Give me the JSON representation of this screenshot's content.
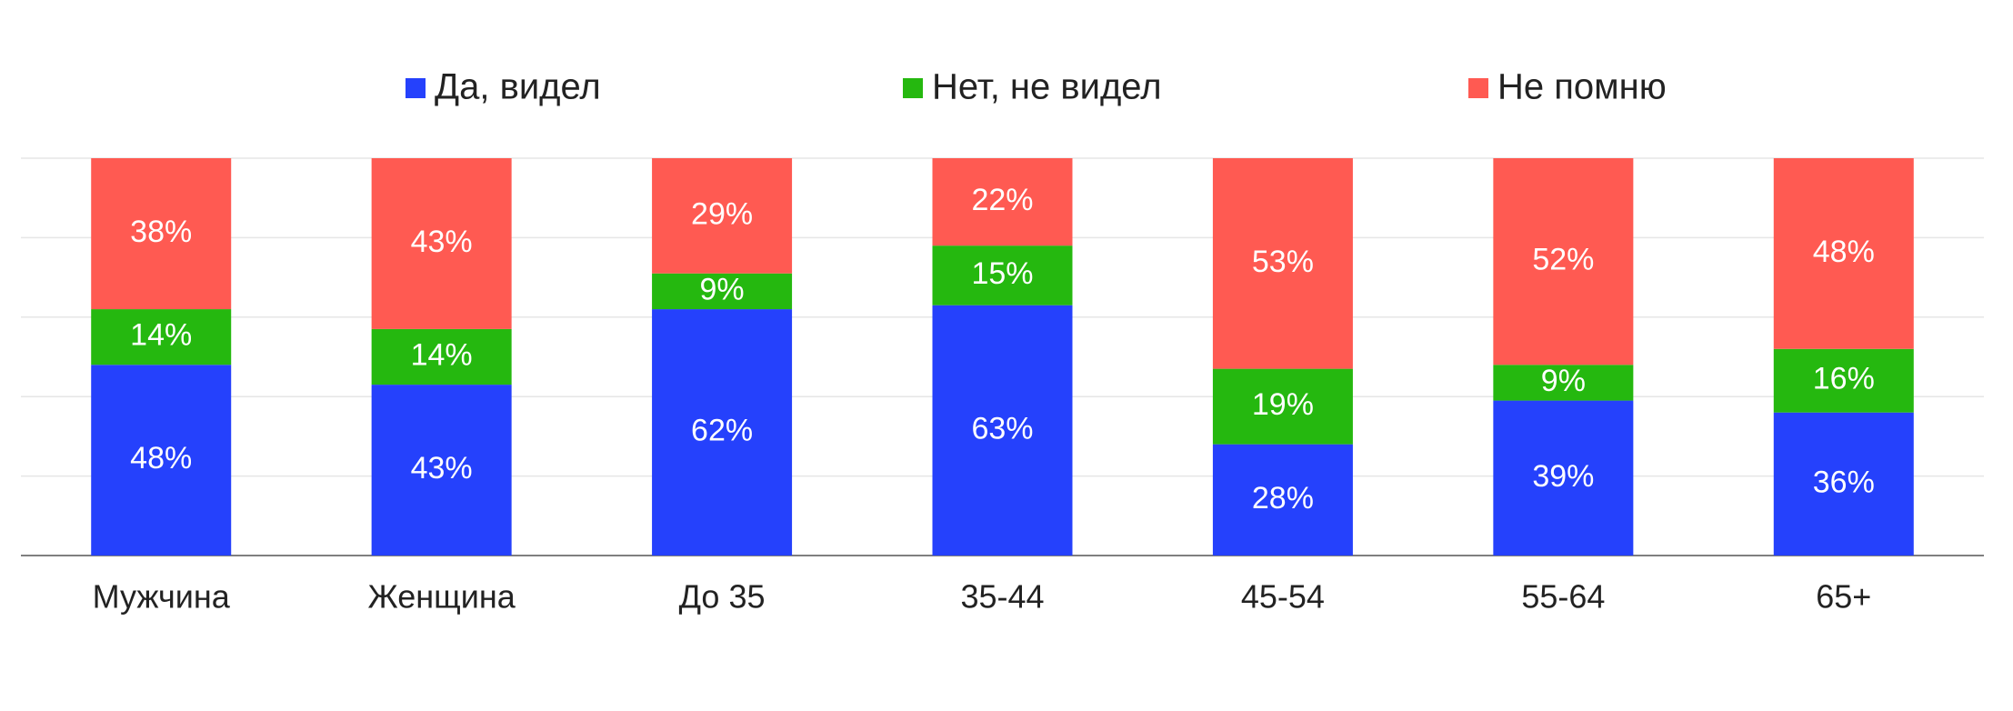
{
  "chart_data": {
    "type": "stacked_bar",
    "categories": [
      "Мужчина",
      "Женщина",
      "До 35",
      "35-44",
      "45-54",
      "55-64",
      "65+"
    ],
    "series": [
      {
        "name": "Да, видел",
        "color": "#2541fc",
        "values": [
          48,
          43,
          62,
          63,
          28,
          39,
          36
        ],
        "value_labels": [
          "48%",
          "43%",
          "62%",
          "63%",
          "28%",
          "39%",
          "36%"
        ]
      },
      {
        "name": "Нет, не видел",
        "color": "#25b80f",
        "values": [
          14,
          14,
          9,
          15,
          19,
          9,
          16
        ],
        "value_labels": [
          "14%",
          "14%",
          "9%",
          "15%",
          "19%",
          "9%",
          "16%"
        ]
      },
      {
        "name": "Не помню",
        "color": "#ff5a52",
        "values": [
          38,
          43,
          29,
          22,
          53,
          52,
          48
        ],
        "value_labels": [
          "38%",
          "43%",
          "29%",
          "22%",
          "53%",
          "52%",
          "48%"
        ]
      }
    ],
    "ylim": [
      0,
      100
    ],
    "yticks": [
      0,
      20,
      40,
      60,
      80,
      100
    ],
    "grid": true,
    "legend": "top"
  }
}
